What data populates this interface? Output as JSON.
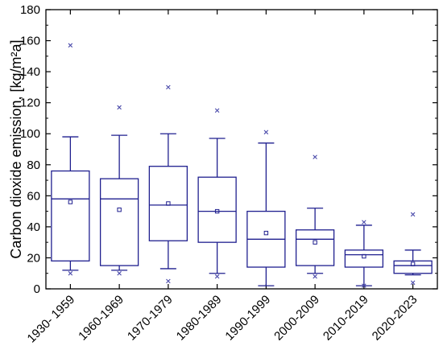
{
  "chart_data": {
    "type": "box",
    "ylabel": "Carbon dioxide emission, [kg/m²a]",
    "ylim": [
      0,
      180
    ],
    "yticks": [
      0,
      20,
      40,
      60,
      80,
      100,
      120,
      140,
      160,
      180
    ],
    "grid": false,
    "categories": [
      "1930- 1959",
      "1960-1969",
      "1970-1979",
      "1980-1989",
      "1990-1999",
      "2000-2009",
      "2010-2019",
      "2020-2023"
    ],
    "boxes": [
      {
        "whisker_low": 12,
        "q1": 18,
        "median": 58,
        "q3": 76,
        "whisker_high": 98,
        "mean": 56,
        "outliers": [
          10,
          157
        ]
      },
      {
        "whisker_low": 12,
        "q1": 15,
        "median": 58,
        "q3": 71,
        "whisker_high": 99,
        "mean": 51,
        "outliers": [
          10,
          117
        ]
      },
      {
        "whisker_low": 13,
        "q1": 31,
        "median": 54,
        "q3": 79,
        "whisker_high": 100,
        "mean": 55,
        "outliers": [
          5,
          130
        ]
      },
      {
        "whisker_low": 10,
        "q1": 30,
        "median": 50,
        "q3": 72,
        "whisker_high": 97,
        "mean": 50,
        "outliers": [
          8,
          115
        ]
      },
      {
        "whisker_low": 2,
        "q1": 14,
        "median": 32,
        "q3": 50,
        "whisker_high": 94,
        "mean": 36,
        "outliers": [
          101
        ]
      },
      {
        "whisker_low": 10,
        "q1": 15,
        "median": 32,
        "q3": 38,
        "whisker_high": 52,
        "mean": 30,
        "outliers": [
          8,
          85
        ]
      },
      {
        "whisker_low": 2,
        "q1": 14,
        "median": 22,
        "q3": 25,
        "whisker_high": 41,
        "mean": 21,
        "outliers": [
          2,
          43
        ]
      },
      {
        "whisker_low": 9,
        "q1": 10,
        "median": 15,
        "q3": 18,
        "whisker_high": 25,
        "mean": 16,
        "outliers": [
          4,
          48
        ]
      }
    ],
    "colors": {
      "box": "#1f1f8f",
      "outlier": "#4a4aaa",
      "axis": "#000000"
    }
  }
}
